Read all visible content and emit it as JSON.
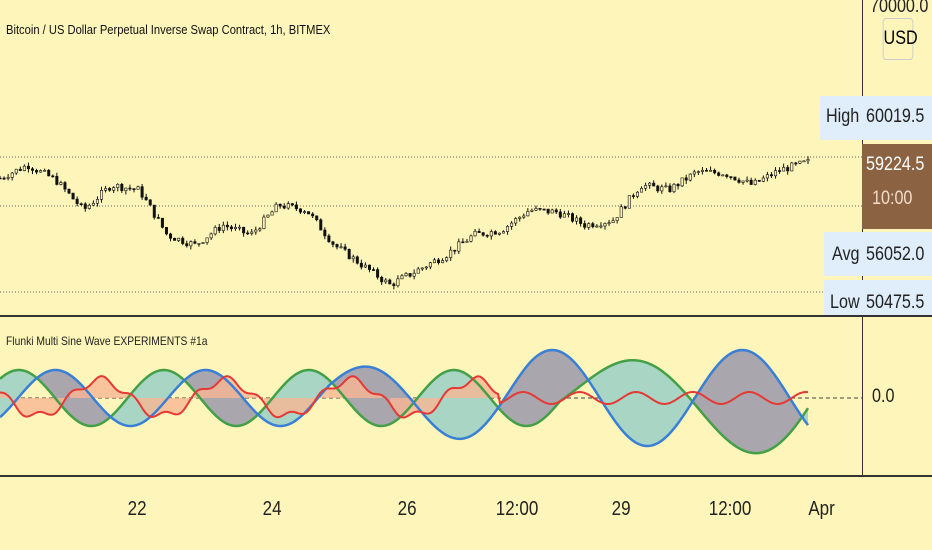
{
  "header": {
    "title": "Bitcoin / US Dollar Perpetual Inverse Swap Contract, 1h, BITMEX"
  },
  "indicator": {
    "title": "Flunki Multi Sine Wave EXPERIMENTS #1a",
    "zero_label": "0.0"
  },
  "price_axis": {
    "top_label": "70000.0",
    "currency": "USD",
    "high": {
      "label": "High",
      "value": "60019.5"
    },
    "last": {
      "value": "59224.5",
      "countdown": "10:00"
    },
    "avg": {
      "label": "Avg",
      "value": "56052.0"
    },
    "low": {
      "label": "Low",
      "value": "50475.5"
    }
  },
  "time_axis": {
    "ticks": [
      "22",
      "24",
      "26",
      "12:00",
      "29",
      "12:00",
      "Apr"
    ]
  },
  "colors": {
    "background": "#fdf5b9",
    "last_price_bg": "#8b6343",
    "axis_label_bg": "#dfeefa",
    "green": "#43a047",
    "blue": "#3a7fd6",
    "red": "#e53935",
    "teal_fill": "#a8d5c4",
    "gray_fill": "#a9a6ae",
    "orange_fill": "#f7b694"
  },
  "price_path": [
    57864,
    58706,
    57734,
    55790,
    57410,
    57086,
    54170,
    53522,
    54818,
    54170,
    56114,
    55790,
    53522,
    52226,
    50930,
    51902,
    52874,
    54170,
    54494,
    55790,
    55660,
    54818,
    55142,
    57410,
    57086,
    58252,
    58187,
    57410,
    58382,
    58900
  ]
}
